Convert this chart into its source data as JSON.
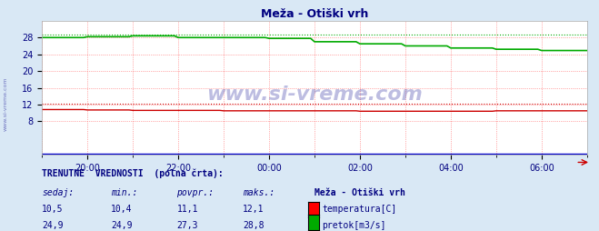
{
  "title": "Meža - Otiški vrh",
  "title_color": "#000080",
  "bg_color": "#d9e8f5",
  "plot_bg_color": "#ffffff",
  "grid_color": "#ff6666",
  "xlim": [
    0,
    144
  ],
  "ylim": [
    0,
    32
  ],
  "x_tick_positions": [
    12,
    36,
    60,
    84,
    108,
    132
  ],
  "x_tick_labels": [
    "20:00",
    "22:00",
    "00:00",
    "02:00",
    "04:00",
    "06:00"
  ],
  "y_tick_positions": [
    8,
    12,
    16,
    20,
    24,
    28
  ],
  "y_tick_labels": [
    "8",
    "12",
    "16",
    "20",
    "24",
    "28"
  ],
  "temp_color": "#cc0000",
  "flow_color": "#00aa00",
  "blue_line_color": "#0000cc",
  "watermark_text": "www.si-vreme.com",
  "watermark_color": "#4444aa",
  "watermark_alpha": 0.35,
  "sidebar_text": "www.si-vreme.com",
  "sidebar_color": "#4444aa",
  "temp_max_dotted": 12.1,
  "flow_max_dotted": 28.8,
  "label_header": "TRENUTNE  VREDNOSTI  (polna črta):",
  "label_header_color": "#000080",
  "col_sedaj": "sedaj:",
  "col_min": "min.:",
  "col_povpr": "povpr.:",
  "col_maks": "maks.:",
  "col_name": "Meža - Otiški vrh",
  "temp_sedaj": "10,5",
  "temp_min": "10,4",
  "temp_povpr": "11,1",
  "temp_maks": "12,1",
  "temp_label": "temperatura[C]",
  "flow_sedaj": "24,9",
  "flow_min": "24,9",
  "flow_povpr": "27,3",
  "flow_maks": "28,8",
  "flow_label": "pretok[m3/s]",
  "table_color": "#000080"
}
